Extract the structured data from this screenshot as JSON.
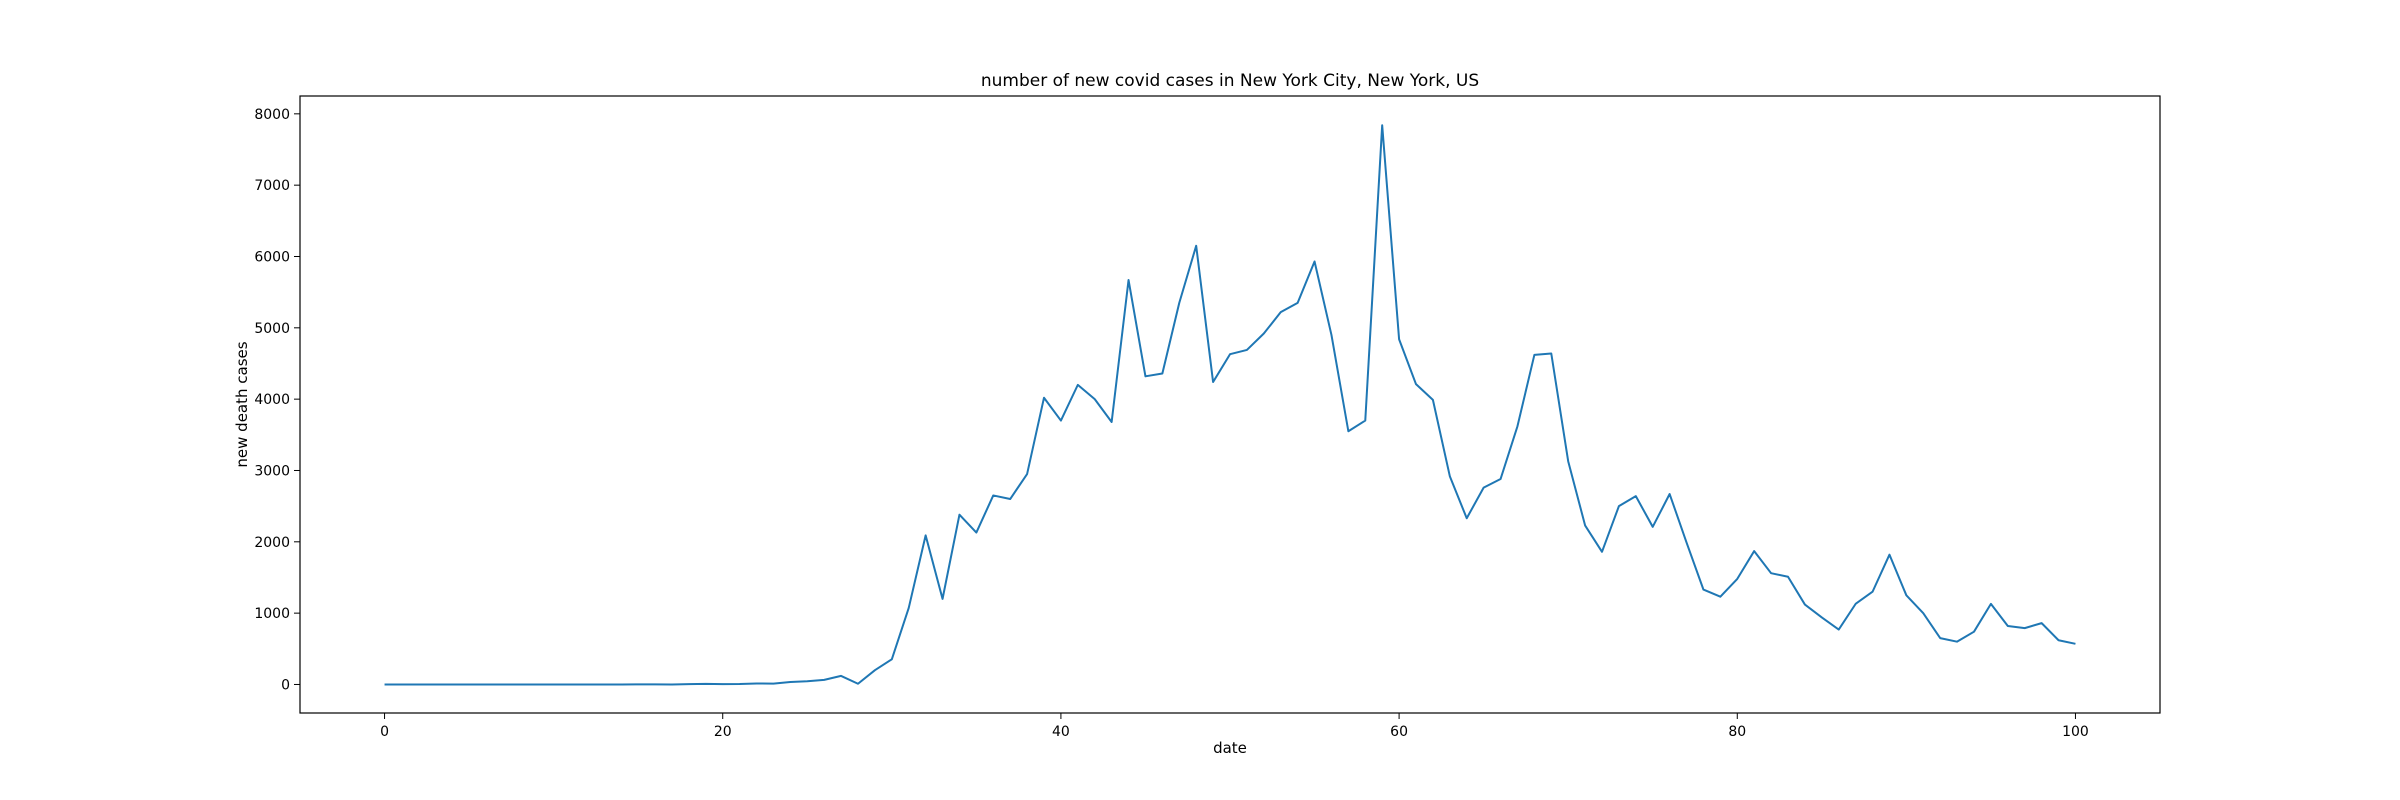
{
  "chart_data": {
    "type": "line",
    "title": "number of new covid cases in New York City, New York, US",
    "xlabel": "date",
    "ylabel": "new death cases",
    "xlim": [
      -5,
      105
    ],
    "ylim": [
      -400,
      8250
    ],
    "xticks": [
      0,
      20,
      40,
      60,
      80,
      100
    ],
    "yticks": [
      0,
      1000,
      2000,
      3000,
      4000,
      5000,
      6000,
      7000,
      8000
    ],
    "grid": false,
    "line_color": "#1f77b4",
    "series": [
      {
        "x": [
          0,
          1,
          2,
          3,
          4,
          5,
          6,
          7,
          8,
          9,
          10,
          11,
          12,
          13,
          14,
          15,
          16,
          17,
          18,
          19,
          20,
          21,
          22,
          23,
          24,
          25,
          26,
          27,
          28,
          29,
          30,
          31,
          32,
          33,
          34,
          35,
          36,
          37,
          38,
          39,
          40,
          41,
          42,
          43,
          44,
          45,
          46,
          47,
          48,
          49,
          50,
          51,
          52,
          53,
          54,
          55,
          56,
          57,
          58,
          59,
          60,
          61,
          62,
          63,
          64,
          65,
          66,
          67,
          68,
          69,
          70,
          71,
          72,
          73,
          74,
          75,
          76,
          77,
          78,
          79,
          80,
          81,
          82,
          83,
          84,
          85,
          86,
          87,
          88,
          89,
          90,
          91,
          92,
          93,
          94,
          95,
          96,
          97,
          98,
          99,
          100
        ],
        "values": [
          0,
          0,
          0,
          0,
          0,
          0,
          0,
          0,
          0,
          0,
          0,
          0,
          0,
          0,
          0,
          1,
          1,
          0,
          4,
          9,
          4,
          6,
          14,
          11,
          34,
          45,
          64,
          120,
          10,
          200,
          353,
          1073,
          2090,
          1200,
          2380,
          2130,
          2650,
          2600,
          2950,
          4020,
          3700,
          4200,
          4000,
          3680,
          5670,
          4320,
          4360,
          5350,
          6150,
          4240,
          4630,
          4690,
          4920,
          5220,
          5350,
          5930,
          4900,
          3550,
          3700,
          7840,
          4840,
          4210,
          3990,
          2920,
          2330,
          2760,
          2880,
          3620,
          4620,
          4640,
          3130,
          2230,
          1860,
          2500,
          2640,
          2210,
          2670,
          1990,
          1330,
          1230,
          1480,
          1870,
          1560,
          1510,
          1120,
          940,
          770,
          1130,
          1300,
          1820,
          1250,
          1000,
          650,
          600,
          740,
          1130,
          820,
          790,
          860,
          620,
          570
        ]
      }
    ]
  }
}
